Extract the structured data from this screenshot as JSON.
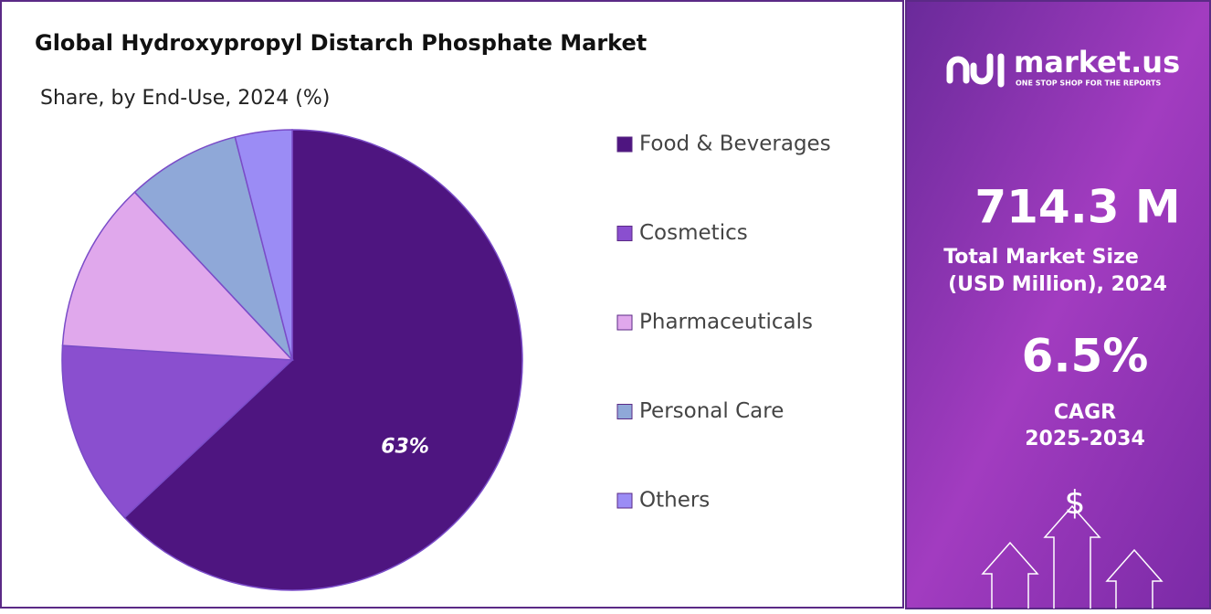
{
  "chart_data": {
    "type": "pie",
    "title": "Global Hydroxypropyl  Distarch Phosphate Market",
    "subtitle": "Share, by End-Use, 2024 (%)",
    "categories": [
      "Food & Beverages",
      "Cosmetics",
      "Pharmaceuticals",
      "Personal Care",
      "Others"
    ],
    "values": [
      63,
      13,
      12,
      8,
      4
    ],
    "value_labels": [
      "63%",
      null,
      null,
      null,
      null
    ],
    "colors": [
      "#4e1580",
      "#8a4fcf",
      "#e0a8ec",
      "#8fa8d8",
      "#9b8cf5"
    ],
    "legend": "right"
  },
  "panel": {
    "brand": "market.us",
    "tagline": "ONE STOP SHOP FOR THE REPORTS",
    "market_size": "714.3 M",
    "market_size_label_1": "Total Market Size",
    "market_size_label_2": "(USD Million), 2024",
    "cagr": "6.5%",
    "cagr_label_1": "CAGR",
    "cagr_label_2": "2025-2034",
    "icon_symbol": "$"
  }
}
